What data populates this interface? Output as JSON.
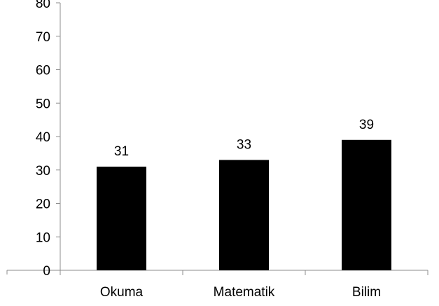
{
  "chart_data": {
    "type": "bar",
    "categories": [
      "Okuma",
      "Matematik",
      "Bilim"
    ],
    "values": [
      31,
      33,
      39
    ],
    "data_labels": [
      "31",
      "33",
      "39"
    ],
    "title": "",
    "xlabel": "",
    "ylabel": "",
    "ylim": [
      0,
      80
    ],
    "y_ticks": [
      0,
      10,
      20,
      30,
      40,
      50,
      60,
      70,
      80
    ],
    "y_tick_labels": [
      "0",
      "10",
      "20",
      "30",
      "40",
      "50",
      "60",
      "70",
      "80"
    ],
    "grid": false,
    "legend": "none",
    "colors": {
      "bar": "#000000",
      "axis": "#8c8c8c",
      "text": "#000000",
      "background": "#ffffff"
    }
  }
}
